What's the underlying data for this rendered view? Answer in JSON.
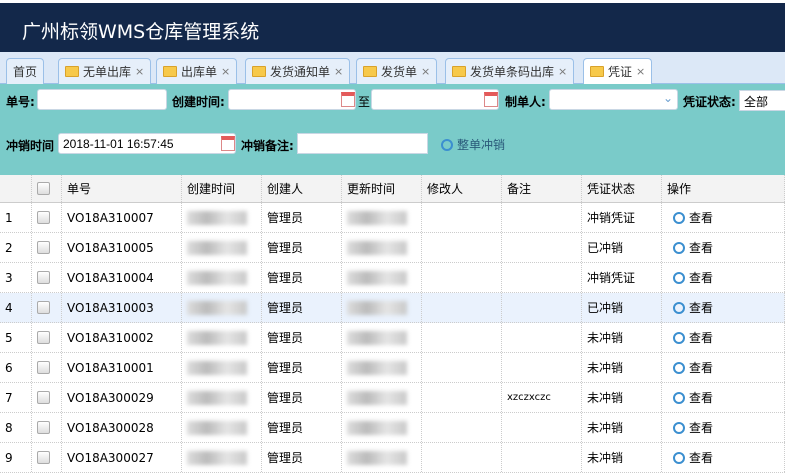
{
  "header": {
    "title": "广州标领WMS仓库管理系统"
  },
  "tabs": [
    {
      "label": "首页",
      "icon": "",
      "closable": false
    },
    {
      "label": "无单出库",
      "icon": "folder-icon",
      "closable": true
    },
    {
      "label": "出库单",
      "icon": "folder-icon",
      "closable": true
    },
    {
      "label": "发货通知单",
      "icon": "folder-icon",
      "closable": true
    },
    {
      "label": "发货单",
      "icon": "folder-icon",
      "closable": true
    },
    {
      "label": "发货单条码出库",
      "icon": "folder-icon",
      "closable": true
    },
    {
      "label": "凭证",
      "icon": "folder-icon",
      "closable": true,
      "active": true
    }
  ],
  "close_glyph": "×",
  "filter": {
    "order_no_label": "单号:",
    "order_no_value": "",
    "created_label": "创建时间:",
    "created_from": "",
    "to_label": "至",
    "created_to": "",
    "creator_label": "制单人:",
    "creator_value": "",
    "status_label": "凭证状态:",
    "status_value": "全部",
    "reverse_time_label": "冲销时间",
    "reverse_time_value": "2018-11-01 16:57:45",
    "reverse_note_label": "冲销备注:",
    "reverse_note_value": "",
    "reverse_button": "整单冲销"
  },
  "table": {
    "columns": [
      "单号",
      "创建时间",
      "创建人",
      "更新时间",
      "修改人",
      "备注",
      "凭证状态",
      "操作"
    ],
    "view_label": "查看",
    "rows": [
      {
        "n": "1",
        "no": "VO18A310007",
        "creator": "管理员",
        "note": "",
        "status": "冲销凭证"
      },
      {
        "n": "2",
        "no": "VO18A310005",
        "creator": "管理员",
        "note": "",
        "status": "已冲销"
      },
      {
        "n": "3",
        "no": "VO18A310004",
        "creator": "管理员",
        "note": "",
        "status": "冲销凭证"
      },
      {
        "n": "4",
        "no": "VO18A310003",
        "creator": "管理员",
        "note": "",
        "status": "已冲销"
      },
      {
        "n": "5",
        "no": "VO18A310002",
        "creator": "管理员",
        "note": "",
        "status": "未冲销"
      },
      {
        "n": "6",
        "no": "VO18A310001",
        "creator": "管理员",
        "note": "",
        "status": "未冲销"
      },
      {
        "n": "7",
        "no": "VO18A300029",
        "creator": "管理员",
        "note": "xzczxczc",
        "status": "未冲销"
      },
      {
        "n": "8",
        "no": "VO18A300028",
        "creator": "管理员",
        "note": "",
        "status": "未冲销"
      },
      {
        "n": "9",
        "no": "VO18A300027",
        "creator": "管理员",
        "note": "",
        "status": "未冲销"
      }
    ]
  }
}
